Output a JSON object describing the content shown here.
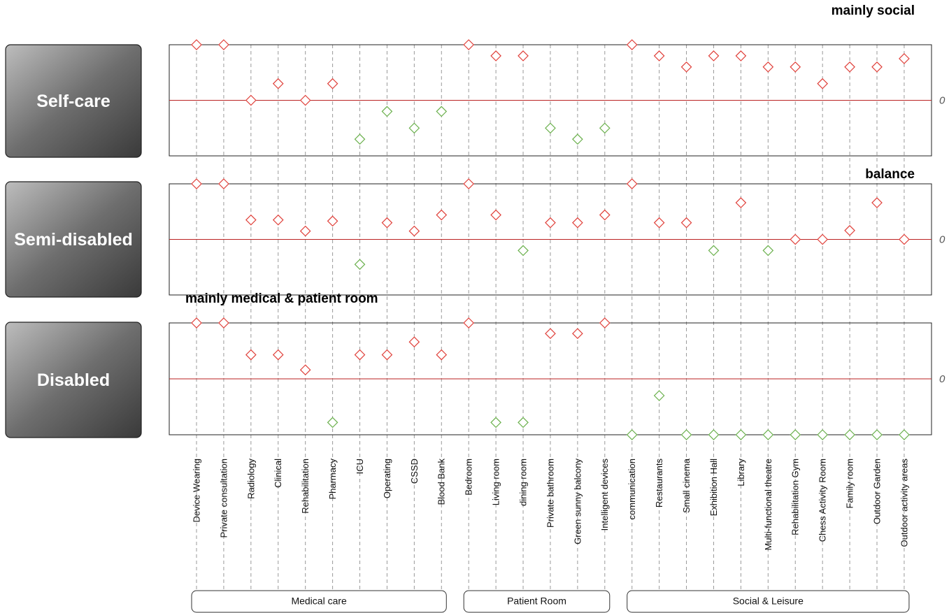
{
  "groups": [
    {
      "name": "Medical care",
      "categories": [
        "Device Wearing",
        "Private consultation",
        "Radiology",
        "Clinical",
        "Rehabilitation",
        "Pharmacy",
        "ICU",
        "Operating",
        "CSSD",
        "Blood Bank"
      ]
    },
    {
      "name": "Patient Room",
      "categories": [
        "Bedroom",
        "Living room",
        "dining room",
        "Private bathroom",
        "Green sunny balcony",
        "Intelligent devices"
      ]
    },
    {
      "name": "Social & Leisure",
      "categories": [
        "communication",
        "Restaurants",
        "Small cinema",
        "Exhibition Hall",
        "Library",
        "Multi-functional theatre",
        "Rehabilitation Gym",
        "Chess Activity Room",
        "Family room",
        "Outdoor Garden",
        "Outdoor activity areas"
      ]
    }
  ],
  "chart_data": [
    {
      "type": "dot",
      "title": "mainly social",
      "label": "Self-care",
      "ylim": [
        -1,
        1
      ],
      "yticks": [
        0
      ],
      "positive_color": "#e0403a",
      "negative_color": "#6ab04c",
      "values": [
        1,
        1,
        0,
        0.3,
        0,
        0.3,
        -0.7,
        -0.2,
        -0.5,
        -0.2,
        1,
        0.8,
        0.8,
        -0.5,
        -0.7,
        -0.5,
        1,
        0.8,
        0.6,
        0.8,
        0.8,
        0.6,
        0.6,
        0.3,
        0.6,
        0.6,
        0.75
      ]
    },
    {
      "type": "dot",
      "title": "balance",
      "label": "Semi-disabled",
      "ylim": [
        -1,
        1
      ],
      "yticks": [
        0
      ],
      "positive_color": "#e0403a",
      "negative_color": "#6ab04c",
      "values": [
        1,
        1,
        0.35,
        0.35,
        0.15,
        0.33,
        -0.45,
        0.3,
        0.15,
        0.44,
        1,
        0.44,
        -0.2,
        0.3,
        0.3,
        0.44,
        1,
        0.3,
        0.3,
        -0.2,
        0.66,
        -0.2,
        0,
        0,
        0.16,
        0.66,
        0
      ]
    },
    {
      "type": "dot",
      "title": "mainly medical & patient room",
      "label": "Disabled",
      "ylim": [
        -1,
        1
      ],
      "yticks": [
        0
      ],
      "positive_color": "#e0403a",
      "negative_color": "#6ab04c",
      "values": [
        1,
        1,
        0.43,
        0.43,
        0.16,
        -0.78,
        0.43,
        0.43,
        0.66,
        0.43,
        1,
        -0.78,
        -0.78,
        0.81,
        0.81,
        1,
        -1,
        -0.3,
        -1,
        -1,
        -1,
        -1,
        -1,
        -1,
        -1,
        -1,
        -1
      ]
    }
  ]
}
